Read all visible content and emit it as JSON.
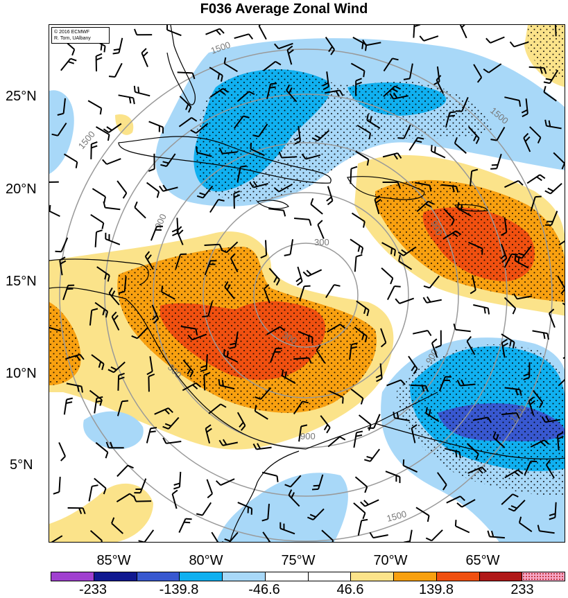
{
  "title": "F036 Average Zonal Wind",
  "credit": {
    "line1": "© 2016 ECMWF",
    "line2": "R. Torn, UAlbany"
  },
  "lat_labels": [
    "25°N",
    "20°N",
    "15°N",
    "10°N",
    "5°N"
  ],
  "lon_labels": [
    "85°W",
    "80°W",
    "75°W",
    "70°W",
    "65°W"
  ],
  "colorbar": {
    "colors": [
      "#a040d0",
      "#101890",
      "#3858d0",
      "#10b0f0",
      "#a8d8f8",
      "#ffffff",
      "#ffffff",
      "#fbe38a",
      "#f8a010",
      "#f05010",
      "#b01818",
      "#f8a8c8"
    ],
    "labels": [
      "-233",
      "-139.8",
      "-46.6",
      "46.6",
      "139.8",
      "233"
    ]
  },
  "contour_labels": [
    "1500",
    "1500",
    "1500",
    "1500",
    "1500",
    "900",
    "900",
    "900",
    "900",
    "300",
    "300",
    "300"
  ]
}
